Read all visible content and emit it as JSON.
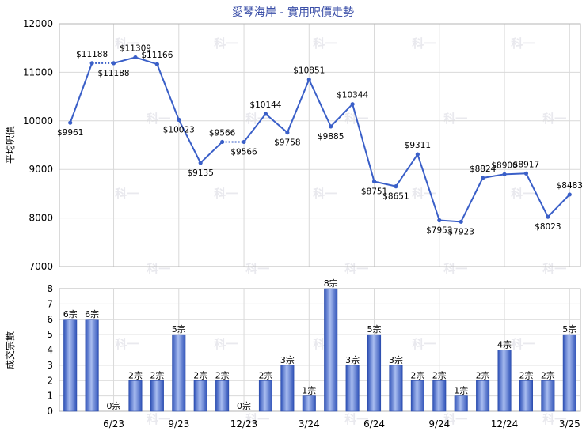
{
  "chart_data": [
    {
      "type": "line",
      "title": "愛琴海岸 - 實用呎價走勢",
      "ylabel": "平均呎價",
      "ylim": [
        7000,
        12000
      ],
      "yticks": [
        "7000",
        "8000",
        "9000",
        "10000",
        "11000",
        "12000"
      ],
      "grid": true,
      "series": [
        {
          "values": [
            9961,
            11188,
            11188,
            11309,
            11166,
            10023,
            9135,
            9566,
            9566,
            10144,
            9758,
            10851,
            9885,
            10344,
            8751,
            8651,
            9311,
            7953,
            7923,
            8824,
            8900,
            8917,
            8023,
            8483
          ],
          "labels": [
            "$9961",
            "$11188",
            "$11188",
            "$11309",
            "$11166",
            "$10023",
            "$9135",
            "$9566",
            "$9566",
            "$10144",
            "$9758",
            "$10851",
            "$9885",
            "$10344",
            "$8751",
            "$8651",
            "$9311",
            "$7953",
            "$7923",
            "$8824",
            "$8900",
            "$8917",
            "$8023",
            "$8483"
          ],
          "dashed_segments": [
            [
              1,
              2
            ],
            [
              7,
              8
            ]
          ]
        }
      ]
    },
    {
      "type": "bar",
      "ylabel": "成交宗數",
      "ylim": [
        0,
        8
      ],
      "yticks": [
        "0",
        "1",
        "2",
        "3",
        "4",
        "5",
        "6",
        "7",
        "8"
      ],
      "grid": true,
      "values": [
        6,
        6,
        0,
        2,
        2,
        5,
        2,
        2,
        0,
        2,
        3,
        1,
        8,
        3,
        5,
        3,
        2,
        2,
        1,
        2,
        4,
        2,
        2,
        5
      ],
      "labels": [
        "6宗",
        "6宗",
        "0宗",
        "2宗",
        "2宗",
        "5宗",
        "2宗",
        "2宗",
        "0宗",
        "2宗",
        "3宗",
        "1宗",
        "8宗",
        "3宗",
        "5宗",
        "3宗",
        "2宗",
        "2宗",
        "1宗",
        "2宗",
        "4宗",
        "2宗",
        "2宗",
        "5宗"
      ],
      "x_tick_labels": [
        {
          "index": 2,
          "text": "6/23"
        },
        {
          "index": 5,
          "text": "9/23"
        },
        {
          "index": 8,
          "text": "12/23"
        },
        {
          "index": 11,
          "text": "3/24"
        },
        {
          "index": 14,
          "text": "6/24"
        },
        {
          "index": 17,
          "text": "9/24"
        },
        {
          "index": 20,
          "text": "12/24"
        },
        {
          "index": 23,
          "text": "3/25"
        }
      ]
    }
  ],
  "watermark": "科一",
  "colors": {
    "line": "#3a5fc8",
    "bar": "#3f64c8",
    "bar_light": "#9fb6ea",
    "grid": "#d9d9d9",
    "title": "#3b4fa8"
  }
}
